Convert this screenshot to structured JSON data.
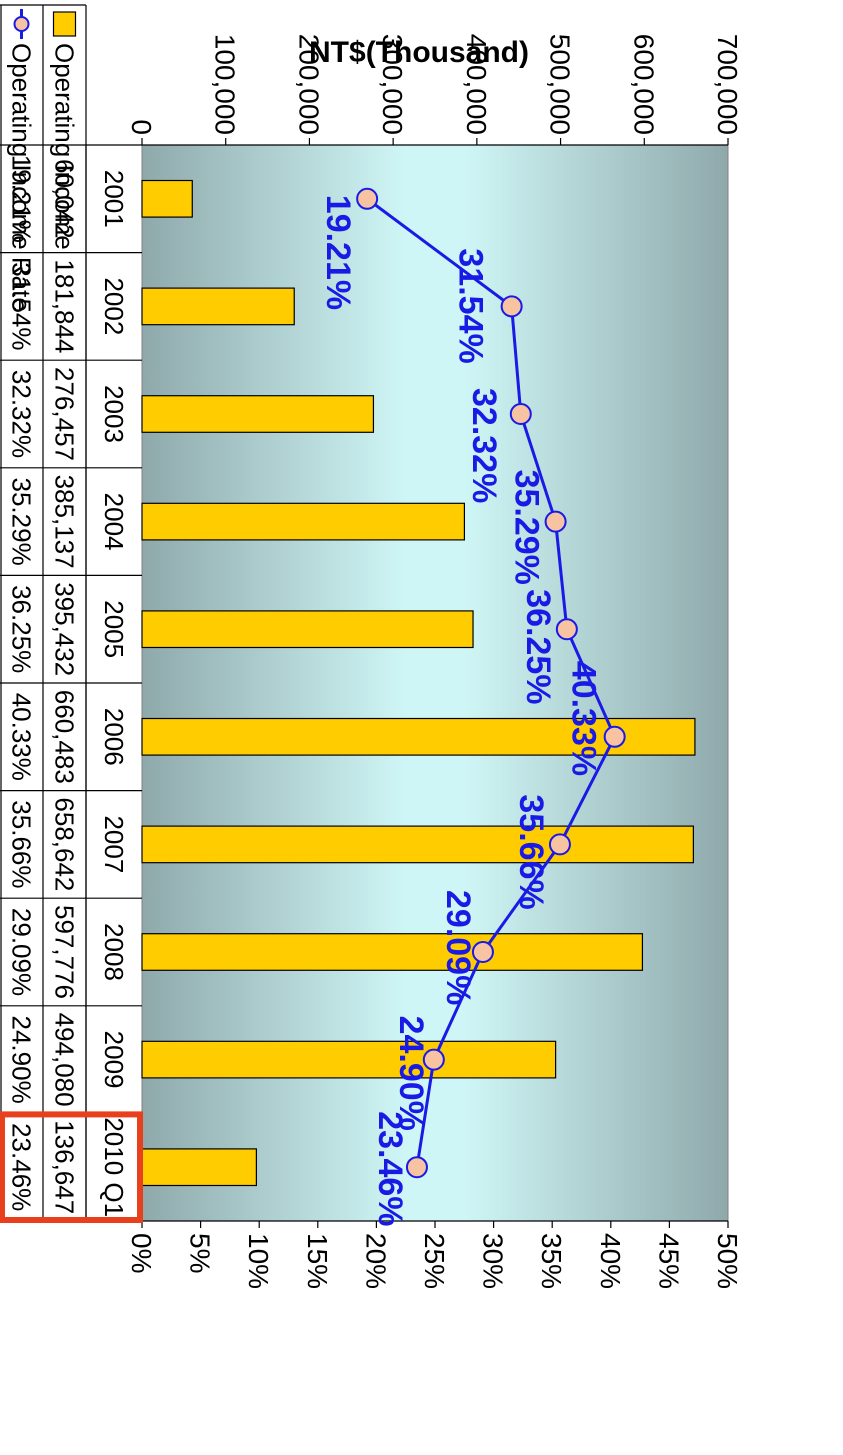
{
  "chart_data": {
    "type": "bar",
    "categories": [
      "2001",
      "2002",
      "2003",
      "2004",
      "2005",
      "2006",
      "2007",
      "2008",
      "2009",
      "2010 Q1"
    ],
    "series": [
      {
        "name": "Operating Income",
        "kind": "bar",
        "axis": "left",
        "color": "#FFCC00",
        "values": [
          60042,
          181844,
          276457,
          385137,
          395432,
          660483,
          658642,
          597776,
          494080,
          136647
        ],
        "value_labels": [
          "60,042",
          "181,844",
          "276,457",
          "385,137",
          "395,432",
          "660,483",
          "658,642",
          "597,776",
          "494,080",
          "136,647"
        ]
      },
      {
        "name": "Operating Income Rate",
        "kind": "line",
        "axis": "right",
        "color": "#1A1AE6",
        "marker_color": "#F8C3A0",
        "values": [
          19.21,
          31.54,
          32.32,
          35.29,
          36.25,
          40.33,
          35.66,
          29.09,
          24.9,
          23.46
        ],
        "value_labels": [
          "19.21%",
          "31.54%",
          "32.32%",
          "35.29%",
          "36.25%",
          "40.33%",
          "35.66%",
          "29.09%",
          "24.90%",
          "23.46%"
        ]
      }
    ],
    "ylabel": "NT$(Thousand)",
    "ylim": [
      0,
      700000
    ],
    "y_ticks": [
      "0",
      "100,000",
      "200,000",
      "300,000",
      "400,000",
      "500,000",
      "600,000",
      "700,000"
    ],
    "y2lim": [
      0,
      50
    ],
    "y2_ticks": [
      "0%",
      "5%",
      "10%",
      "15%",
      "20%",
      "25%",
      "30%",
      "35%",
      "40%",
      "45%",
      "50%"
    ],
    "data_table": true,
    "highlight": {
      "category": "2010 Q1",
      "color": "#E8401C"
    },
    "orientation": "rotated-90-clockwise"
  }
}
